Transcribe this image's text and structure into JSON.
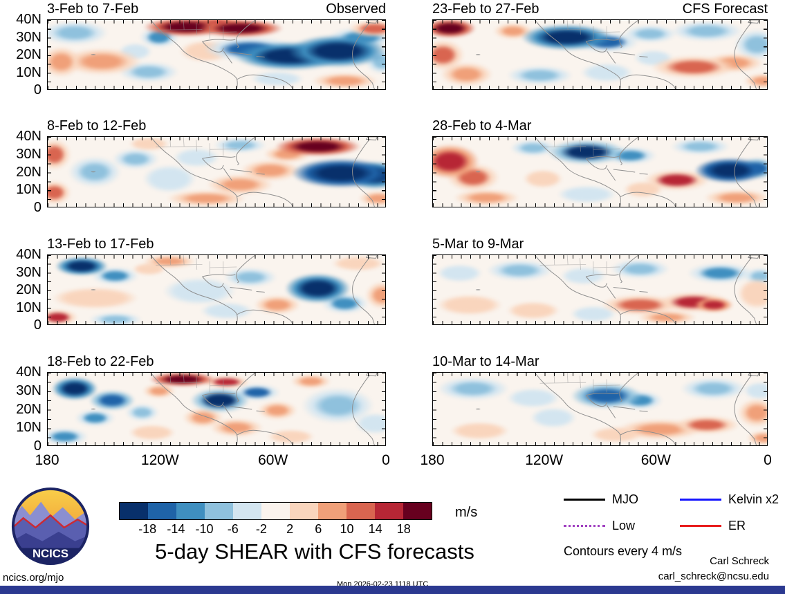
{
  "title": "5-day SHEAR with CFS forecasts",
  "header": {
    "left_label": "Observed",
    "right_label": "CFS Forecast"
  },
  "axes": {
    "lat_ticks": [
      "40N",
      "30N",
      "20N",
      "10N",
      "0"
    ],
    "lon_ticks": [
      "180",
      "120W",
      "60W",
      "0"
    ]
  },
  "colorbar": {
    "levels": [
      -18,
      -14,
      -10,
      -6,
      -2,
      2,
      6,
      10,
      14,
      18
    ],
    "labels": [
      "-18",
      "-14",
      "-10",
      "-6",
      "-2",
      "2",
      "6",
      "10",
      "14",
      "18"
    ],
    "colors": [
      "#08306b",
      "#1f63a8",
      "#3f8fc0",
      "#8fc1dd",
      "#d3e5f0",
      "#faf3ed",
      "#f9d5bd",
      "#f0a079",
      "#d96550",
      "#b72635",
      "#67001f"
    ],
    "units": "m/s"
  },
  "legend": {
    "items": [
      {
        "label": "MJO",
        "color": "#000000",
        "style": "solid"
      },
      {
        "label": "Kelvin x2",
        "color": "#1414ff",
        "style": "solid"
      },
      {
        "label": "Low",
        "color": "#a040c0",
        "style": "dotted"
      },
      {
        "label": "ER",
        "color": "#e81c1c",
        "style": "solid"
      }
    ],
    "note": "Contours every 4 m/s"
  },
  "logo": {
    "text": "NCICS"
  },
  "footer": {
    "left": "ncics.org/mjo",
    "center": "Mon 2026-02-23 1118 UTC",
    "credit_line1": "Carl Schreck",
    "credit_line2": "carl_schreck@ncsu.edu",
    "bar_color": "#2b3990"
  },
  "chart_data": {
    "type": "heatmap",
    "subtype": "filled-contour-anomaly-maps",
    "units": "m/s",
    "contour_interval_note": "Contours every 4 m/s",
    "lat_range_deg_n": [
      0,
      40
    ],
    "lon_ticks": [
      "180",
      "120W",
      "60W",
      "0"
    ],
    "colorbar_levels": [
      -18,
      -14,
      -10,
      -6,
      -2,
      2,
      6,
      10,
      14,
      18
    ],
    "background_color": "#faf4ee",
    "features_format": "[x_pct_from_left(180->0), y_pct_from_top(40N->0), width_pct, height_pct, anomaly_m_per_s]",
    "panels": [
      {
        "title": "3-Feb to 7-Feb",
        "column": "observed",
        "row": 0,
        "features": [
          [
            8,
            18,
            20,
            35,
            -8
          ],
          [
            4,
            60,
            12,
            45,
            10
          ],
          [
            16,
            60,
            24,
            40,
            8
          ],
          [
            26,
            45,
            10,
            25,
            -4
          ],
          [
            30,
            75,
            18,
            30,
            -6
          ],
          [
            33,
            25,
            12,
            30,
            -10
          ],
          [
            41,
            10,
            26,
            28,
            22
          ],
          [
            50,
            6,
            20,
            22,
            18
          ],
          [
            57,
            12,
            26,
            26,
            22
          ],
          [
            47,
            45,
            16,
            32,
            6
          ],
          [
            60,
            42,
            28,
            36,
            -14
          ],
          [
            72,
            52,
            34,
            42,
            -22
          ],
          [
            86,
            45,
            30,
            48,
            -22
          ],
          [
            93,
            25,
            20,
            30,
            -10
          ],
          [
            97,
            12,
            16,
            25,
            14
          ],
          [
            88,
            88,
            20,
            24,
            10
          ],
          [
            68,
            85,
            16,
            22,
            -4
          ],
          [
            99,
            60,
            10,
            35,
            -8
          ]
        ]
      },
      {
        "title": "8-Feb to 12-Feb",
        "column": "observed",
        "row": 1,
        "features": [
          [
            2,
            25,
            10,
            45,
            14
          ],
          [
            2,
            80,
            10,
            35,
            12
          ],
          [
            14,
            50,
            16,
            45,
            -6
          ],
          [
            26,
            32,
            14,
            30,
            -8
          ],
          [
            36,
            60,
            16,
            40,
            -4
          ],
          [
            30,
            10,
            12,
            20,
            4
          ],
          [
            47,
            88,
            24,
            24,
            8
          ],
          [
            57,
            68,
            20,
            30,
            8
          ],
          [
            66,
            48,
            18,
            30,
            10
          ],
          [
            57,
            12,
            16,
            22,
            -6
          ],
          [
            80,
            14,
            26,
            28,
            22
          ],
          [
            71,
            25,
            14,
            24,
            10
          ],
          [
            87,
            52,
            30,
            42,
            -24
          ],
          [
            97,
            55,
            18,
            40,
            -20
          ],
          [
            98,
            88,
            12,
            22,
            8
          ],
          [
            44,
            30,
            14,
            28,
            -4
          ]
        ]
      },
      {
        "title": "13-Feb to 17-Feb",
        "column": "observed",
        "row": 2,
        "features": [
          [
            10,
            16,
            16,
            28,
            -20
          ],
          [
            20,
            30,
            14,
            26,
            -10
          ],
          [
            36,
            9,
            16,
            20,
            10
          ],
          [
            30,
            20,
            10,
            18,
            4
          ],
          [
            14,
            62,
            26,
            32,
            6
          ],
          [
            3,
            90,
            12,
            24,
            16
          ],
          [
            20,
            93,
            16,
            20,
            -8
          ],
          [
            45,
            52,
            22,
            40,
            -4
          ],
          [
            60,
            32,
            16,
            28,
            -8
          ],
          [
            68,
            72,
            14,
            28,
            8
          ],
          [
            80,
            48,
            20,
            44,
            -20
          ],
          [
            88,
            70,
            14,
            30,
            -12
          ],
          [
            92,
            12,
            16,
            22,
            4
          ],
          [
            99,
            58,
            10,
            40,
            10
          ],
          [
            53,
            80,
            16,
            25,
            -4
          ]
        ]
      },
      {
        "title": "18-Feb to 22-Feb",
        "column": "observed",
        "row": 3,
        "features": [
          [
            8,
            22,
            14,
            32,
            -20
          ],
          [
            19,
            38,
            14,
            28,
            -16
          ],
          [
            14,
            62,
            12,
            24,
            -12
          ],
          [
            5,
            88,
            14,
            24,
            -10
          ],
          [
            28,
            55,
            10,
            24,
            -6
          ],
          [
            40,
            9,
            20,
            20,
            24
          ],
          [
            53,
            13,
            14,
            18,
            16
          ],
          [
            33,
            25,
            10,
            20,
            8
          ],
          [
            51,
            38,
            18,
            34,
            -18
          ],
          [
            62,
            27,
            14,
            24,
            -14
          ],
          [
            46,
            62,
            12,
            26,
            8
          ],
          [
            56,
            76,
            16,
            26,
            10
          ],
          [
            68,
            52,
            12,
            26,
            8
          ],
          [
            31,
            82,
            14,
            22,
            4
          ],
          [
            78,
            12,
            12,
            20,
            8
          ],
          [
            86,
            45,
            22,
            50,
            -6
          ],
          [
            97,
            70,
            12,
            30,
            -4
          ],
          [
            72,
            88,
            14,
            20,
            4
          ]
        ]
      },
      {
        "title": "23-Feb to 27-Feb",
        "column": "forecast",
        "row": 0,
        "features": [
          [
            5,
            12,
            16,
            28,
            22
          ],
          [
            3,
            50,
            13,
            45,
            14
          ],
          [
            10,
            78,
            16,
            35,
            10
          ],
          [
            24,
            16,
            12,
            24,
            8
          ],
          [
            40,
            25,
            28,
            38,
            -20
          ],
          [
            52,
            32,
            20,
            30,
            -14
          ],
          [
            65,
            20,
            16,
            26,
            -8
          ],
          [
            82,
            16,
            22,
            30,
            -8
          ],
          [
            97,
            35,
            14,
            45,
            -8
          ],
          [
            78,
            68,
            26,
            34,
            14
          ],
          [
            90,
            62,
            18,
            28,
            10
          ],
          [
            32,
            80,
            20,
            28,
            -8
          ],
          [
            52,
            76,
            16,
            28,
            -4
          ],
          [
            99,
            88,
            12,
            22,
            10
          ],
          [
            66,
            55,
            12,
            24,
            -4
          ]
        ]
      },
      {
        "title": "28-Feb to 4-Mar",
        "column": "forecast",
        "row": 1,
        "features": [
          [
            5,
            35,
            18,
            50,
            18
          ],
          [
            12,
            58,
            16,
            40,
            14
          ],
          [
            16,
            87,
            20,
            24,
            8
          ],
          [
            30,
            16,
            14,
            24,
            -8
          ],
          [
            46,
            22,
            24,
            36,
            -18
          ],
          [
            59,
            27,
            16,
            26,
            -12
          ],
          [
            80,
            14,
            18,
            24,
            -8
          ],
          [
            89,
            48,
            22,
            36,
            -24
          ],
          [
            97,
            45,
            12,
            30,
            -16
          ],
          [
            73,
            62,
            20,
            30,
            16
          ],
          [
            91,
            87,
            20,
            24,
            10
          ],
          [
            46,
            82,
            18,
            26,
            -4
          ],
          [
            33,
            60,
            12,
            26,
            4
          ],
          [
            63,
            75,
            12,
            24,
            4
          ]
        ]
      },
      {
        "title": "5-Mar to 9-Mar",
        "column": "forecast",
        "row": 2,
        "features": [
          [
            8,
            26,
            14,
            26,
            -4
          ],
          [
            26,
            22,
            20,
            30,
            -8
          ],
          [
            45,
            30,
            14,
            26,
            -4
          ],
          [
            62,
            20,
            18,
            28,
            -8
          ],
          [
            86,
            26,
            20,
            30,
            -10
          ],
          [
            98,
            30,
            10,
            25,
            -6
          ],
          [
            11,
            72,
            20,
            30,
            4
          ],
          [
            30,
            80,
            16,
            26,
            4
          ],
          [
            48,
            85,
            14,
            24,
            -4
          ],
          [
            62,
            72,
            24,
            30,
            12
          ],
          [
            78,
            68,
            22,
            30,
            16
          ],
          [
            84,
            72,
            12,
            22,
            18
          ],
          [
            97,
            55,
            12,
            45,
            6
          ],
          [
            70,
            90,
            18,
            20,
            10
          ]
        ]
      },
      {
        "title": "10-Mar to 14-Mar",
        "column": "forecast",
        "row": 3,
        "features": [
          [
            12,
            22,
            22,
            32,
            -6
          ],
          [
            30,
            35,
            16,
            28,
            -4
          ],
          [
            52,
            32,
            22,
            36,
            -16
          ],
          [
            62,
            38,
            14,
            26,
            -12
          ],
          [
            84,
            22,
            20,
            30,
            -8
          ],
          [
            98,
            25,
            10,
            25,
            -4
          ],
          [
            14,
            80,
            18,
            24,
            4
          ],
          [
            36,
            62,
            14,
            28,
            -4
          ],
          [
            68,
            78,
            26,
            28,
            10
          ],
          [
            82,
            72,
            20,
            26,
            12
          ],
          [
            97,
            55,
            12,
            40,
            8
          ],
          [
            55,
            85,
            16,
            22,
            6
          ],
          [
            99,
            90,
            10,
            20,
            8
          ]
        ]
      }
    ]
  }
}
